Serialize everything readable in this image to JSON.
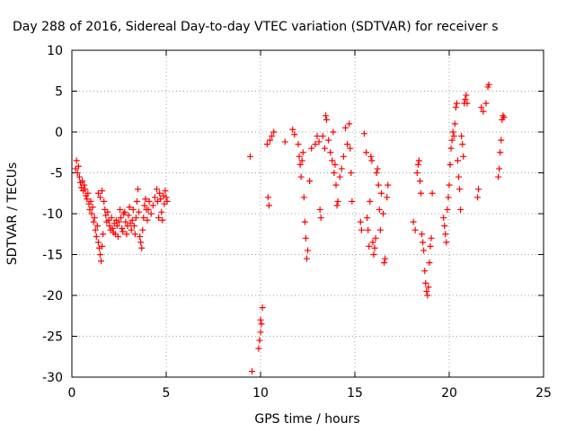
{
  "chart_data": {
    "type": "scatter",
    "title": "Day 288 of 2016, Sidereal Day-to-day VTEC variation (SDTVAR) for receiver s",
    "xlabel": "GPS time / hours",
    "ylabel": "SDTVAR / TECUs",
    "xlim": [
      0,
      25
    ],
    "ylim": [
      -30,
      10
    ],
    "xticks": [
      0,
      5,
      10,
      15,
      20,
      25
    ],
    "yticks": [
      -30,
      -25,
      -20,
      -15,
      -10,
      -5,
      0,
      5,
      10
    ],
    "grid": true,
    "legend": "none",
    "marker": "+",
    "color": "#ff0000",
    "points": [
      [
        0.2,
        -4.5
      ],
      [
        0.25,
        -3.5
      ],
      [
        0.3,
        -5.0
      ],
      [
        0.35,
        -4.2
      ],
      [
        0.4,
        -5.5
      ],
      [
        0.45,
        -6.2
      ],
      [
        0.5,
        -6.8
      ],
      [
        0.55,
        -6.0
      ],
      [
        0.6,
        -7.2
      ],
      [
        0.65,
        -6.5
      ],
      [
        0.7,
        -7.0
      ],
      [
        0.75,
        -7.8
      ],
      [
        0.8,
        -8.2
      ],
      [
        0.85,
        -7.5
      ],
      [
        0.9,
        -8.8
      ],
      [
        0.95,
        -9.5
      ],
      [
        1.0,
        -8.5
      ],
      [
        1.05,
        -10.0
      ],
      [
        1.1,
        -9.2
      ],
      [
        1.15,
        -11.0
      ],
      [
        1.2,
        -10.5
      ],
      [
        1.25,
        -12.0
      ],
      [
        1.3,
        -12.8
      ],
      [
        1.35,
        -11.5
      ],
      [
        1.4,
        -13.5
      ],
      [
        1.45,
        -14.2
      ],
      [
        1.5,
        -15.0
      ],
      [
        1.55,
        -15.8
      ],
      [
        1.6,
        -14.0
      ],
      [
        1.65,
        -12.5
      ],
      [
        1.4,
        -7.5
      ],
      [
        1.5,
        -8.0
      ],
      [
        1.6,
        -7.2
      ],
      [
        1.7,
        -8.5
      ],
      [
        1.75,
        -9.5
      ],
      [
        1.8,
        -10.2
      ],
      [
        1.85,
        -11.0
      ],
      [
        1.9,
        -9.8
      ],
      [
        1.95,
        -10.8
      ],
      [
        2.0,
        -11.5
      ],
      [
        2.05,
        -12.0
      ],
      [
        2.1,
        -10.5
      ],
      [
        2.15,
        -11.8
      ],
      [
        2.2,
        -12.3
      ],
      [
        2.25,
        -11.2
      ],
      [
        2.3,
        -12.5
      ],
      [
        2.35,
        -10.8
      ],
      [
        2.4,
        -11.5
      ],
      [
        2.45,
        -12.8
      ],
      [
        2.5,
        -11.0
      ],
      [
        2.55,
        -9.5
      ],
      [
        2.6,
        -10.5
      ],
      [
        2.65,
        -11.8
      ],
      [
        2.7,
        -12.2
      ],
      [
        2.75,
        -10.0
      ],
      [
        2.8,
        -9.8
      ],
      [
        2.85,
        -11.0
      ],
      [
        2.9,
        -12.5
      ],
      [
        2.95,
        -11.5
      ],
      [
        3.0,
        -10.2
      ],
      [
        3.05,
        -9.2
      ],
      [
        3.1,
        -11.2
      ],
      [
        3.15,
        -12.0
      ],
      [
        3.2,
        -10.8
      ],
      [
        3.25,
        -9.5
      ],
      [
        3.3,
        -11.5
      ],
      [
        3.35,
        -12.5
      ],
      [
        3.4,
        -10.5
      ],
      [
        3.45,
        -8.5
      ],
      [
        3.5,
        -7.0
      ],
      [
        3.55,
        -9.8
      ],
      [
        3.6,
        -12.8
      ],
      [
        3.65,
        -13.5
      ],
      [
        3.7,
        -14.2
      ],
      [
        3.75,
        -12.0
      ],
      [
        3.8,
        -10.5
      ],
      [
        3.85,
        -9.0
      ],
      [
        3.9,
        -8.2
      ],
      [
        3.95,
        -9.5
      ],
      [
        4.0,
        -10.8
      ],
      [
        4.05,
        -9.5
      ],
      [
        4.1,
        -8.5
      ],
      [
        4.2,
        -10.0
      ],
      [
        4.3,
        -9.0
      ],
      [
        4.4,
        -8.0
      ],
      [
        4.5,
        -7.0
      ],
      [
        4.55,
        -8.5
      ],
      [
        4.6,
        -10.5
      ],
      [
        4.65,
        -7.5
      ],
      [
        4.7,
        -8.2
      ],
      [
        4.75,
        -9.8
      ],
      [
        4.8,
        -10.8
      ],
      [
        4.85,
        -7.8
      ],
      [
        4.9,
        -8.8
      ],
      [
        4.95,
        -7.2
      ],
      [
        5.0,
        -8.0
      ],
      [
        5.05,
        -8.5
      ],
      [
        9.45,
        -3.0
      ],
      [
        9.55,
        -29.3
      ],
      [
        9.9,
        -26.5
      ],
      [
        9.95,
        -25.5
      ],
      [
        10.0,
        -24.5
      ],
      [
        10.05,
        -23.5
      ],
      [
        10.1,
        -21.5
      ],
      [
        10.0,
        -23.0
      ],
      [
        10.35,
        -1.5
      ],
      [
        10.4,
        -8.0
      ],
      [
        10.45,
        -9.0
      ],
      [
        10.5,
        -1.0
      ],
      [
        10.6,
        -0.5
      ],
      [
        10.7,
        0.0
      ],
      [
        11.3,
        -1.2
      ],
      [
        11.7,
        0.3
      ],
      [
        11.8,
        -0.3
      ],
      [
        12.0,
        -1.5
      ],
      [
        12.05,
        -3.0
      ],
      [
        12.1,
        -4.0
      ],
      [
        12.15,
        -5.5
      ],
      [
        12.2,
        -3.5
      ],
      [
        12.25,
        -2.5
      ],
      [
        12.3,
        -8.0
      ],
      [
        12.35,
        -11.0
      ],
      [
        12.4,
        -13.0
      ],
      [
        12.45,
        -15.5
      ],
      [
        12.5,
        -14.5
      ],
      [
        12.6,
        -6.0
      ],
      [
        12.7,
        -2.0
      ],
      [
        12.9,
        -1.5
      ],
      [
        13.0,
        -0.5
      ],
      [
        13.1,
        -1.2
      ],
      [
        13.15,
        -9.5
      ],
      [
        13.2,
        -10.5
      ],
      [
        13.3,
        -0.5
      ],
      [
        13.4,
        -2.0
      ],
      [
        13.45,
        2.0
      ],
      [
        13.5,
        1.5
      ],
      [
        13.6,
        -1.0
      ],
      [
        13.7,
        -2.5
      ],
      [
        13.8,
        -3.5
      ],
      [
        13.85,
        0.0
      ],
      [
        13.9,
        -5.0
      ],
      [
        13.95,
        -4.0
      ],
      [
        14.0,
        -6.5
      ],
      [
        14.05,
        -9.0
      ],
      [
        14.1,
        -8.5
      ],
      [
        14.2,
        -5.5
      ],
      [
        14.3,
        -4.5
      ],
      [
        14.4,
        -3.0
      ],
      [
        14.5,
        0.5
      ],
      [
        14.6,
        -1.5
      ],
      [
        14.7,
        1.0
      ],
      [
        14.75,
        -2.0
      ],
      [
        14.8,
        -5.0
      ],
      [
        14.85,
        -8.5
      ],
      [
        15.3,
        -11.0
      ],
      [
        15.35,
        -12.0
      ],
      [
        15.5,
        -0.2
      ],
      [
        15.6,
        -2.5
      ],
      [
        15.65,
        -10.5
      ],
      [
        15.7,
        -12.0
      ],
      [
        15.75,
        -14.0
      ],
      [
        15.8,
        -8.5
      ],
      [
        15.85,
        -3.0
      ],
      [
        15.9,
        -3.5
      ],
      [
        15.95,
        -13.5
      ],
      [
        16.0,
        -15.0
      ],
      [
        16.05,
        -14.2
      ],
      [
        16.1,
        -13.0
      ],
      [
        16.15,
        -5.0
      ],
      [
        16.2,
        -4.5
      ],
      [
        16.25,
        -6.5
      ],
      [
        16.3,
        -9.5
      ],
      [
        16.35,
        -12.0
      ],
      [
        16.4,
        -7.5
      ],
      [
        16.5,
        -10.0
      ],
      [
        16.55,
        -16.0
      ],
      [
        16.6,
        -15.5
      ],
      [
        16.7,
        -8.0
      ],
      [
        16.75,
        -6.5
      ],
      [
        18.1,
        -11.0
      ],
      [
        18.2,
        -12.0
      ],
      [
        18.3,
        -5.0
      ],
      [
        18.35,
        -4.0
      ],
      [
        18.4,
        -3.5
      ],
      [
        18.45,
        -6.0
      ],
      [
        18.5,
        -7.5
      ],
      [
        18.55,
        -12.5
      ],
      [
        18.6,
        -13.5
      ],
      [
        18.65,
        -14.5
      ],
      [
        18.7,
        -17.0
      ],
      [
        18.75,
        -18.5
      ],
      [
        18.8,
        -19.5
      ],
      [
        18.85,
        -20.0
      ],
      [
        18.9,
        -19.0
      ],
      [
        18.95,
        -16.0
      ],
      [
        19.0,
        -14.0
      ],
      [
        19.05,
        -13.0
      ],
      [
        19.1,
        -7.5
      ],
      [
        19.7,
        -10.5
      ],
      [
        19.75,
        -11.5
      ],
      [
        19.8,
        -12.5
      ],
      [
        19.85,
        -13.5
      ],
      [
        19.9,
        -9.5
      ],
      [
        19.95,
        -8.0
      ],
      [
        20.0,
        -6.5
      ],
      [
        20.05,
        -4.0
      ],
      [
        20.1,
        -2.0
      ],
      [
        20.15,
        -1.0
      ],
      [
        20.2,
        0.0
      ],
      [
        20.25,
        -0.5
      ],
      [
        20.3,
        1.0
      ],
      [
        20.35,
        3.0
      ],
      [
        20.4,
        3.5
      ],
      [
        20.45,
        -3.5
      ],
      [
        20.5,
        -5.5
      ],
      [
        20.55,
        -7.0
      ],
      [
        20.6,
        -9.5
      ],
      [
        20.65,
        -0.5
      ],
      [
        20.7,
        -1.5
      ],
      [
        20.75,
        -3.0
      ],
      [
        20.8,
        3.5
      ],
      [
        20.85,
        4.0
      ],
      [
        20.9,
        4.5
      ],
      [
        20.95,
        3.5
      ],
      [
        21.5,
        -8.0
      ],
      [
        21.55,
        -7.0
      ],
      [
        21.7,
        3.0
      ],
      [
        21.8,
        2.5
      ],
      [
        21.95,
        3.5
      ],
      [
        22.05,
        5.5
      ],
      [
        22.1,
        5.8
      ],
      [
        22.6,
        -5.5
      ],
      [
        22.65,
        -4.5
      ],
      [
        22.7,
        -2.5
      ],
      [
        22.75,
        -1.0
      ],
      [
        22.8,
        1.5
      ],
      [
        22.85,
        2.0
      ],
      [
        22.9,
        1.8
      ]
    ]
  }
}
